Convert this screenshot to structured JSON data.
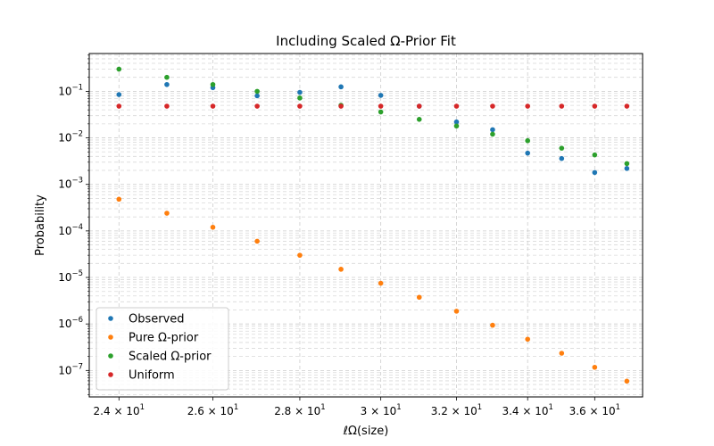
{
  "chart_data": {
    "type": "scatter",
    "title": "Including Scaled Ω-Prior Fit",
    "xlabel": "ℓΩ(size)",
    "ylabel": "Probability",
    "xscale": "log",
    "yscale": "log",
    "xlim": [
      23.4,
      37.5
    ],
    "ylim": [
      2.7e-08,
      0.65
    ],
    "grid": true,
    "legend_position": "lower-left",
    "x": [
      24,
      25,
      26,
      27,
      28,
      29,
      30,
      31,
      32,
      33,
      34,
      35,
      36,
      37
    ],
    "x_ticks": [
      {
        "value": 24,
        "mantissa": "2.4",
        "base": "10",
        "exp": "1"
      },
      {
        "value": 26,
        "mantissa": "2.6",
        "base": "10",
        "exp": "1"
      },
      {
        "value": 28,
        "mantissa": "2.8",
        "base": "10",
        "exp": "1"
      },
      {
        "value": 30,
        "mantissa": "3",
        "base": "10",
        "exp": "1"
      },
      {
        "value": 32,
        "mantissa": "3.2",
        "base": "10",
        "exp": "1"
      },
      {
        "value": 34,
        "mantissa": "3.4",
        "base": "10",
        "exp": "1"
      },
      {
        "value": 36,
        "mantissa": "3.6",
        "base": "10",
        "exp": "1"
      }
    ],
    "y_ticks": [
      {
        "exp": -7,
        "base": "10",
        "label_exp": "−7"
      },
      {
        "exp": -6,
        "base": "10",
        "label_exp": "−6"
      },
      {
        "exp": -5,
        "base": "10",
        "label_exp": "−5"
      },
      {
        "exp": -4,
        "base": "10",
        "label_exp": "−4"
      },
      {
        "exp": -3,
        "base": "10",
        "label_exp": "−3"
      },
      {
        "exp": -2,
        "base": "10",
        "label_exp": "−2"
      },
      {
        "exp": -1,
        "base": "10",
        "label_exp": "−1"
      }
    ],
    "series": [
      {
        "name": "Observed",
        "color": "#1f77b4",
        "values": [
          0.085,
          0.14,
          0.12,
          0.08,
          0.095,
          0.125,
          0.082,
          0.048,
          0.022,
          0.015,
          0.0047,
          0.0036,
          0.0018,
          0.0022
        ]
      },
      {
        "name": "Pure Ω-prior",
        "color": "#ff7f0e",
        "values": [
          0.00048,
          0.00024,
          0.00012,
          6e-05,
          3e-05,
          1.5e-05,
          7.5e-06,
          3.75e-06,
          1.88e-06,
          9.4e-07,
          4.7e-07,
          2.35e-07,
          1.17e-07,
          5.9e-08
        ]
      },
      {
        "name": "Scaled Ω-prior",
        "color": "#2ca02c",
        "values": [
          0.3,
          0.2,
          0.14,
          0.1,
          0.072,
          0.05,
          0.036,
          0.025,
          0.018,
          0.012,
          0.0087,
          0.006,
          0.0043,
          0.0028
        ]
      },
      {
        "name": "Uniform",
        "color": "#d62728",
        "values": [
          0.048,
          0.048,
          0.048,
          0.048,
          0.048,
          0.048,
          0.048,
          0.048,
          0.048,
          0.048,
          0.048,
          0.048,
          0.048,
          0.048
        ]
      }
    ]
  }
}
